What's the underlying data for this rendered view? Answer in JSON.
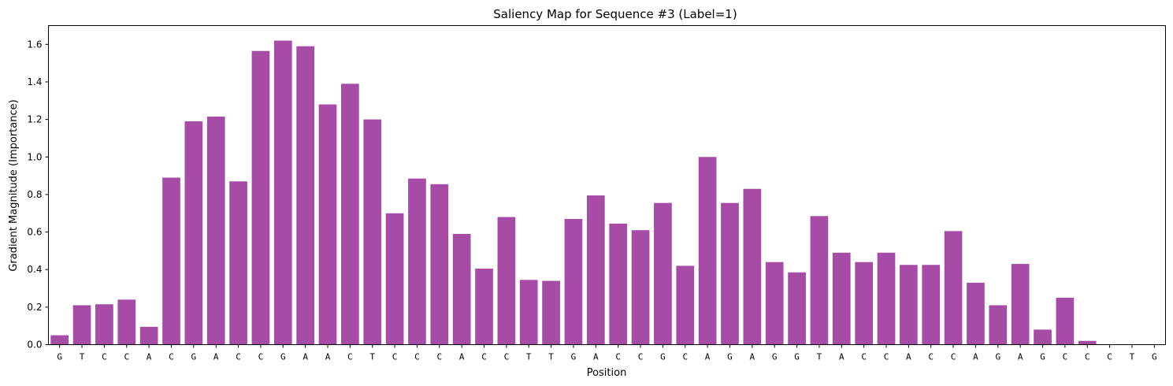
{
  "chart_data": {
    "type": "bar",
    "title": "Saliency Map for Sequence #3 (Label=1)",
    "xlabel": "Position",
    "ylabel": "Gradient Magnitude (Importance)",
    "ylim": [
      0,
      1.7
    ],
    "yticks": [
      0.0,
      0.2,
      0.4,
      0.6,
      0.8,
      1.0,
      1.2,
      1.4,
      1.6
    ],
    "ytick_labels": [
      "0.0",
      "0.2",
      "0.4",
      "0.6",
      "0.8",
      "1.0",
      "1.2",
      "1.4",
      "1.6"
    ],
    "grid": false,
    "bar_color": "#a64ca6",
    "categories": [
      "G",
      "T",
      "C",
      "C",
      "A",
      "C",
      "G",
      "A",
      "C",
      "C",
      "G",
      "A",
      "A",
      "C",
      "T",
      "C",
      "C",
      "C",
      "A",
      "C",
      "C",
      "T",
      "T",
      "G",
      "A",
      "C",
      "C",
      "G",
      "C",
      "A",
      "G",
      "A",
      "G",
      "G",
      "T",
      "A",
      "C",
      "C",
      "A",
      "C",
      "C",
      "A",
      "G",
      "A",
      "G",
      "C",
      "C",
      "C",
      "T",
      "G"
    ],
    "values": [
      0.05,
      0.21,
      0.215,
      0.24,
      0.095,
      0.89,
      1.19,
      1.215,
      0.87,
      1.565,
      1.62,
      1.59,
      1.28,
      1.39,
      1.2,
      0.7,
      0.885,
      0.855,
      0.59,
      0.405,
      0.68,
      0.345,
      0.34,
      0.67,
      0.795,
      0.645,
      0.61,
      0.755,
      0.42,
      1.0,
      0.755,
      0.83,
      0.44,
      0.385,
      0.685,
      0.49,
      0.44,
      0.49,
      0.425,
      0.425,
      0.605,
      0.33,
      0.21,
      0.43,
      0.08,
      0.25,
      0.02,
      0,
      0,
      0
    ]
  }
}
